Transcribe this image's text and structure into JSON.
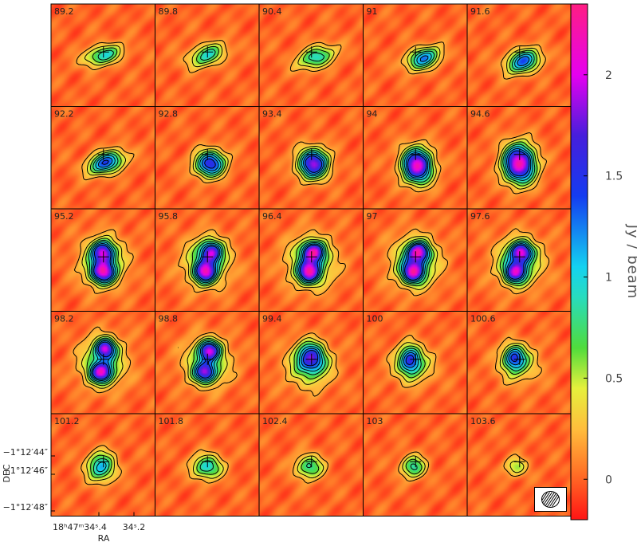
{
  "chart_data": {
    "type": "heatmap",
    "description_kind": "channel-map",
    "panels": [
      {
        "label": "89.2",
        "peak": 0.95,
        "blobs": [
          {
            "dx": 0.0,
            "dy": 0.0,
            "sx": 0.22,
            "sy": 0.11,
            "a": 1.0,
            "rot": -15
          }
        ]
      },
      {
        "label": "89.8",
        "peak": 0.9,
        "blobs": [
          {
            "dx": 0.0,
            "dy": 0.0,
            "sx": 0.22,
            "sy": 0.12,
            "a": 1.0,
            "rot": -20
          }
        ]
      },
      {
        "label": "90.4",
        "peak": 0.95,
        "blobs": [
          {
            "dx": 0.05,
            "dy": 0.02,
            "sx": 0.22,
            "sy": 0.12,
            "a": 1.0,
            "rot": -20
          }
        ]
      },
      {
        "label": "91",
        "peak": 1.2,
        "blobs": [
          {
            "dx": 0.08,
            "dy": 0.03,
            "sx": 0.2,
            "sy": 0.12,
            "a": 1.0,
            "rot": -20
          }
        ]
      },
      {
        "label": "91.6",
        "peak": 1.3,
        "blobs": [
          {
            "dx": 0.04,
            "dy": 0.06,
            "sx": 0.2,
            "sy": 0.13,
            "a": 1.0,
            "rot": -20
          }
        ]
      },
      {
        "label": "92.2",
        "peak": 1.4,
        "blobs": [
          {
            "dx": 0.03,
            "dy": 0.05,
            "sx": 0.21,
            "sy": 0.12,
            "a": 1.0,
            "rot": -20
          }
        ]
      },
      {
        "label": "92.8",
        "peak": 1.6,
        "blobs": [
          {
            "dx": 0.03,
            "dy": 0.06,
            "sx": 0.17,
            "sy": 0.15,
            "a": 1.0,
            "rot": -10
          }
        ]
      },
      {
        "label": "93.4",
        "peak": 1.85,
        "blobs": [
          {
            "dx": 0.02,
            "dy": 0.06,
            "sx": 0.17,
            "sy": 0.17,
            "a": 1.0,
            "rot": -10
          }
        ]
      },
      {
        "label": "94",
        "peak": 2.1,
        "blobs": [
          {
            "dx": 0.02,
            "dy": 0.08,
            "sx": 0.17,
            "sy": 0.2,
            "a": 1.0,
            "rot": -10
          }
        ]
      },
      {
        "label": "94.6",
        "peak": 2.2,
        "blobs": [
          {
            "dx": 0.0,
            "dy": 0.06,
            "sx": 0.18,
            "sy": 0.22,
            "a": 1.0,
            "rot": -5
          }
        ]
      },
      {
        "label": "95.2",
        "peak": 2.25,
        "blobs": [
          {
            "dx": 0.0,
            "dy": -0.08,
            "sx": 0.12,
            "sy": 0.12,
            "a": 0.9,
            "rot": 0
          },
          {
            "dx": 0.0,
            "dy": 0.12,
            "sx": 0.13,
            "sy": 0.12,
            "a": 1.0,
            "rot": 0
          },
          {
            "dx": 0.0,
            "dy": 0.02,
            "sx": 0.25,
            "sy": 0.28,
            "a": 0.5,
            "rot": 0
          }
        ]
      },
      {
        "label": "95.8",
        "peak": 2.2,
        "blobs": [
          {
            "dx": 0.04,
            "dy": -0.08,
            "sx": 0.12,
            "sy": 0.12,
            "a": 0.9,
            "rot": 0
          },
          {
            "dx": -0.02,
            "dy": 0.12,
            "sx": 0.12,
            "sy": 0.12,
            "a": 1.0,
            "rot": 0
          },
          {
            "dx": 0.0,
            "dy": 0.02,
            "sx": 0.26,
            "sy": 0.28,
            "a": 0.5,
            "rot": 0
          }
        ]
      },
      {
        "label": "96.4",
        "peak": 2.3,
        "blobs": [
          {
            "dx": 0.02,
            "dy": -0.08,
            "sx": 0.12,
            "sy": 0.11,
            "a": 1.0,
            "rot": 0
          },
          {
            "dx": -0.02,
            "dy": 0.12,
            "sx": 0.12,
            "sy": 0.12,
            "a": 1.0,
            "rot": 0
          },
          {
            "dx": 0.0,
            "dy": 0.02,
            "sx": 0.27,
            "sy": 0.29,
            "a": 0.5,
            "rot": 0
          }
        ]
      },
      {
        "label": "97",
        "peak": 2.3,
        "blobs": [
          {
            "dx": 0.03,
            "dy": -0.08,
            "sx": 0.12,
            "sy": 0.11,
            "a": 1.0,
            "rot": 0
          },
          {
            "dx": -0.02,
            "dy": 0.12,
            "sx": 0.12,
            "sy": 0.12,
            "a": 1.0,
            "rot": 0
          },
          {
            "dx": 0.0,
            "dy": 0.02,
            "sx": 0.27,
            "sy": 0.29,
            "a": 0.5,
            "rot": 0
          }
        ]
      },
      {
        "label": "97.6",
        "peak": 2.2,
        "blobs": [
          {
            "dx": 0.02,
            "dy": -0.08,
            "sx": 0.12,
            "sy": 0.11,
            "a": 1.0,
            "rot": 0
          },
          {
            "dx": -0.04,
            "dy": 0.12,
            "sx": 0.12,
            "sy": 0.12,
            "a": 0.95,
            "rot": 0
          },
          {
            "dx": 0.0,
            "dy": 0.02,
            "sx": 0.27,
            "sy": 0.28,
            "a": 0.5,
            "rot": 0
          }
        ]
      },
      {
        "label": "98.2",
        "peak": 2.15,
        "blobs": [
          {
            "dx": 0.02,
            "dy": -0.14,
            "sx": 0.11,
            "sy": 0.11,
            "a": 1.0,
            "rot": 0
          },
          {
            "dx": -0.02,
            "dy": 0.1,
            "sx": 0.12,
            "sy": 0.11,
            "a": 1.0,
            "rot": 0
          },
          {
            "dx": 0.0,
            "dy": 0.0,
            "sx": 0.26,
            "sy": 0.28,
            "a": 0.5,
            "rot": 0
          }
        ]
      },
      {
        "label": "98.8",
        "peak": 2.0,
        "blobs": [
          {
            "dx": 0.02,
            "dy": -0.12,
            "sx": 0.12,
            "sy": 0.11,
            "a": 1.0,
            "rot": 0
          },
          {
            "dx": -0.02,
            "dy": 0.1,
            "sx": 0.12,
            "sy": 0.11,
            "a": 0.9,
            "rot": 0
          },
          {
            "dx": 0.0,
            "dy": 0.0,
            "sx": 0.26,
            "sy": 0.27,
            "a": 0.5,
            "rot": 0
          }
        ]
      },
      {
        "label": "99.4",
        "peak": 1.8,
        "blobs": [
          {
            "dx": 0.0,
            "dy": -0.05,
            "sx": 0.15,
            "sy": 0.17,
            "a": 1.0,
            "rot": -20
          },
          {
            "dx": -0.02,
            "dy": 0.04,
            "sx": 0.27,
            "sy": 0.26,
            "a": 0.45,
            "rot": 0
          }
        ]
      },
      {
        "label": "100",
        "peak": 1.6,
        "blobs": [
          {
            "dx": -0.05,
            "dy": -0.03,
            "sx": 0.12,
            "sy": 0.16,
            "a": 1.0,
            "rot": 0
          },
          {
            "dx": -0.02,
            "dy": 0.03,
            "sx": 0.25,
            "sy": 0.22,
            "a": 0.45,
            "rot": 0
          }
        ]
      },
      {
        "label": "100.6",
        "peak": 1.55,
        "blobs": [
          {
            "dx": -0.05,
            "dy": -0.05,
            "sx": 0.12,
            "sy": 0.14,
            "a": 1.0,
            "rot": 0
          },
          {
            "dx": 0.0,
            "dy": 0.02,
            "sx": 0.24,
            "sy": 0.22,
            "a": 0.45,
            "rot": 0
          }
        ]
      },
      {
        "label": "101.2",
        "peak": 1.1,
        "blobs": [
          {
            "dx": -0.02,
            "dy": 0.02,
            "sx": 0.16,
            "sy": 0.17,
            "a": 1.0,
            "rot": 0
          }
        ]
      },
      {
        "label": "101.8",
        "peak": 1.0,
        "blobs": [
          {
            "dx": 0.0,
            "dy": 0.02,
            "sx": 0.17,
            "sy": 0.14,
            "a": 1.0,
            "rot": 0
          }
        ]
      },
      {
        "label": "102.4",
        "peak": 0.85,
        "blobs": [
          {
            "dx": -0.02,
            "dy": 0.02,
            "sx": 0.16,
            "sy": 0.14,
            "a": 1.0,
            "rot": 0
          }
        ]
      },
      {
        "label": "103",
        "peak": 0.85,
        "blobs": [
          {
            "dx": -0.02,
            "dy": 0.02,
            "sx": 0.14,
            "sy": 0.13,
            "a": 1.0,
            "rot": 0
          }
        ]
      },
      {
        "label": "103.6",
        "peak": 0.55,
        "blobs": [
          {
            "dx": -0.03,
            "dy": 0.02,
            "sx": 0.13,
            "sy": 0.11,
            "a": 1.0,
            "rot": 0
          }
        ]
      }
    ],
    "colorbar": {
      "title": "Jy / beam",
      "range": [
        -0.2,
        2.35
      ],
      "ticks": [
        {
          "value": 0,
          "label": "0"
        },
        {
          "value": 0.5,
          "label": "0.5"
        },
        {
          "value": 1,
          "label": "1"
        },
        {
          "value": 1.5,
          "label": "1.5"
        },
        {
          "value": 2,
          "label": "2"
        }
      ]
    },
    "contour_levels": [
      0.2,
      0.4,
      0.6,
      0.8,
      1.0,
      1.2,
      1.4
    ],
    "axes": {
      "xlabel": "RA",
      "ylabel": "DEC",
      "x_ticks": [
        {
          "value": 34.4,
          "label": "18ʰ47ᵐ34ˢ.4"
        },
        {
          "value": 34.2,
          "label": "34ˢ.2"
        }
      ],
      "y_ticks": [
        {
          "value": 44,
          "label": "−1°12′44″"
        },
        {
          "value": 46,
          "label": "−1°12′46″"
        },
        {
          "value": 48,
          "label": "−1°12′48″"
        }
      ]
    },
    "grid": false,
    "beam_marker": "bottom-right"
  }
}
